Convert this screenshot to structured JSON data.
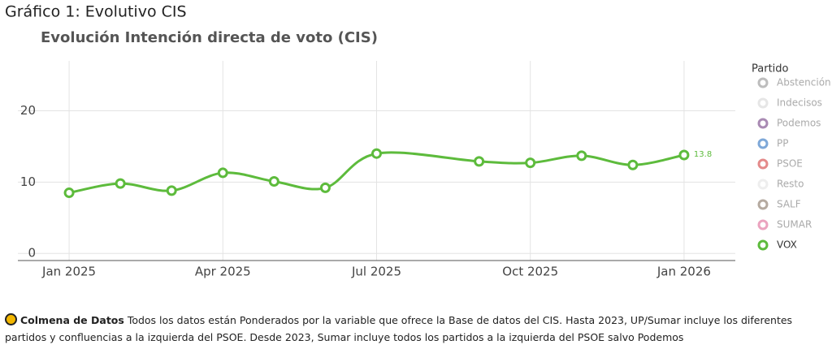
{
  "heading": "Gráfico 1: Evolutivo CIS",
  "chart_data": {
    "type": "line",
    "title": "Evolución Intención directa de voto (CIS)",
    "x": [
      "2025-01",
      "2025-02",
      "2025-03",
      "2025-04",
      "2025-05",
      "2025-06",
      "2025-07",
      "2025-09",
      "2025-10",
      "2025-11",
      "2025-12",
      "2026-01"
    ],
    "series": [
      {
        "name": "Abstención",
        "color": "#bdbdbd",
        "visible": false
      },
      {
        "name": "Indecisos",
        "color": "#e6e6e6",
        "visible": false
      },
      {
        "name": "Podemos",
        "color": "#a98ab3",
        "visible": false
      },
      {
        "name": "PP",
        "color": "#7ea8d8",
        "visible": false
      },
      {
        "name": "PSOE",
        "color": "#e48a8a",
        "visible": false
      },
      {
        "name": "Resto",
        "color": "#eeeeee",
        "visible": false
      },
      {
        "name": "SALF",
        "color": "#b5aaa0",
        "visible": false
      },
      {
        "name": "SUMAR",
        "color": "#eba3bf",
        "visible": false
      },
      {
        "name": "VOX",
        "color": "#5dbb3c",
        "visible": true,
        "values": [
          8.5,
          9.8,
          8.8,
          11.3,
          10.1,
          9.2,
          14.0,
          12.9,
          12.7,
          13.7,
          12.4,
          13.8
        ],
        "label_last": true
      }
    ],
    "legend_title": "Partido",
    "xlim": [
      "2024-12",
      "2026-02"
    ],
    "xticks": [
      {
        "value": "2025-01",
        "label": "Jan 2025"
      },
      {
        "value": "2025-04",
        "label": "Apr 2025"
      },
      {
        "value": "2025-07",
        "label": "Jul 2025"
      },
      {
        "value": "2025-10",
        "label": "Oct 2025"
      },
      {
        "value": "2026-01",
        "label": "Jan 2026"
      }
    ],
    "ylim": [
      -1,
      27
    ],
    "yticks": [
      0,
      10,
      20
    ],
    "grid": true
  },
  "footer": {
    "source": "Colmena de Datos",
    "note": "Todos los datos están Ponderados por la variable que ofrece la Base de datos del CIS. Hasta 2023, UP/Sumar incluye los diferentes partidos y confluencias a la izquierda del PSOE. Desde 2023, Sumar incluye todos los partidos a la izquierda del PSOE salvo Podemos"
  }
}
